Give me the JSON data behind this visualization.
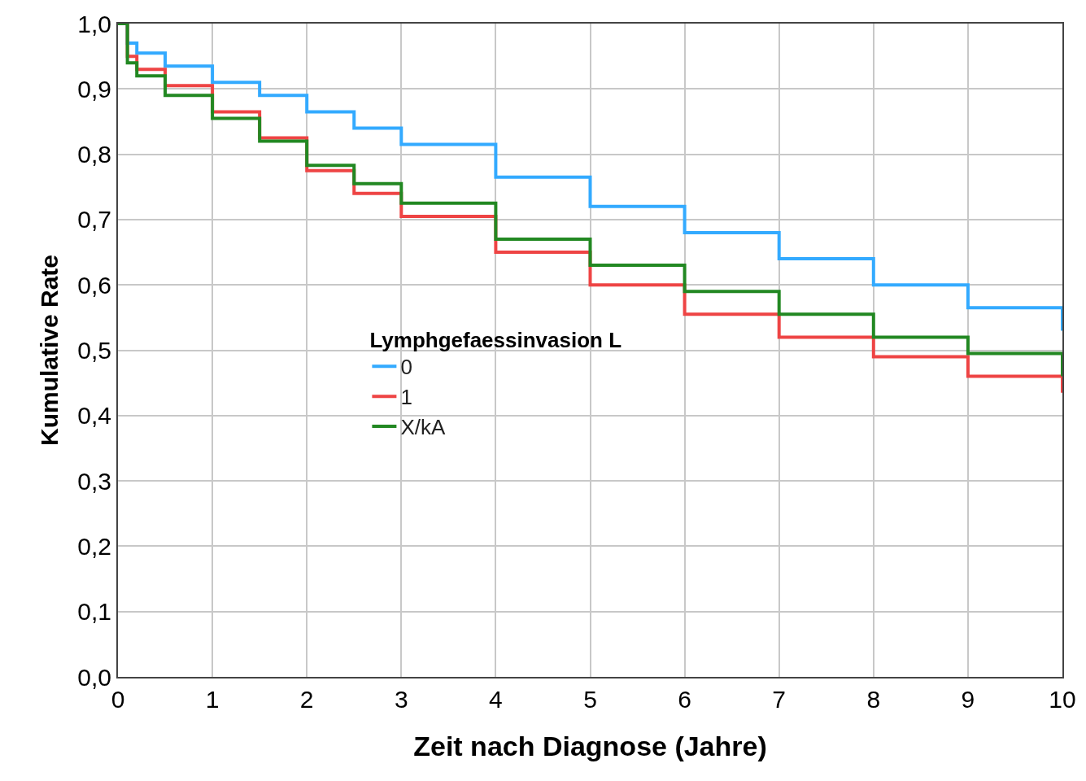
{
  "chart_data": {
    "type": "step",
    "xlabel": "Zeit nach Diagnose (Jahre)",
    "ylabel": "Kumulative Rate",
    "legend_title": "Lymphgefaessinvasion L",
    "legend": "center",
    "grid": true,
    "marker": "none",
    "line_style": "solid",
    "xlim": [
      0,
      10
    ],
    "xticks": [
      0,
      1,
      2,
      3,
      4,
      5,
      6,
      7,
      8,
      9,
      10
    ],
    "ylim": [
      0,
      1
    ],
    "yticks": [
      {
        "value": 0,
        "label": "0,0"
      },
      {
        "value": 0.1,
        "label": "0,1"
      },
      {
        "value": 0.2,
        "label": "0,2"
      },
      {
        "value": 0.3,
        "label": "0,3"
      },
      {
        "value": 0.4,
        "label": "0,4"
      },
      {
        "value": 0.5,
        "label": "0,5"
      },
      {
        "value": 0.6,
        "label": "0,6"
      },
      {
        "value": 0.7,
        "label": "0,7"
      },
      {
        "value": 0.8,
        "label": "0,8"
      },
      {
        "value": 0.9,
        "label": "0,9"
      },
      {
        "value": 1,
        "label": "1,0"
      }
    ],
    "x": [
      0,
      0.1,
      0.2,
      0.5,
      1,
      1.5,
      2,
      2.5,
      3,
      4,
      5,
      6,
      7,
      8,
      9,
      10
    ],
    "series": [
      {
        "name": "0",
        "color": "#33aaff",
        "values": [
          1,
          0.97,
          0.955,
          0.935,
          0.91,
          0.89,
          0.865,
          0.84,
          0.815,
          0.765,
          0.72,
          0.68,
          0.64,
          0.6,
          0.565,
          0.53
        ]
      },
      {
        "name": "1",
        "color": "#ee4444",
        "values": [
          1,
          0.95,
          0.93,
          0.905,
          0.865,
          0.825,
          0.775,
          0.74,
          0.705,
          0.65,
          0.6,
          0.555,
          0.52,
          0.49,
          0.46,
          0.435
        ]
      },
      {
        "name": "X/kA",
        "color": "#228822",
        "values": [
          1,
          0.94,
          0.92,
          0.89,
          0.855,
          0.82,
          0.783,
          0.755,
          0.725,
          0.67,
          0.63,
          0.59,
          0.555,
          0.52,
          0.495,
          0.46
        ]
      }
    ]
  }
}
